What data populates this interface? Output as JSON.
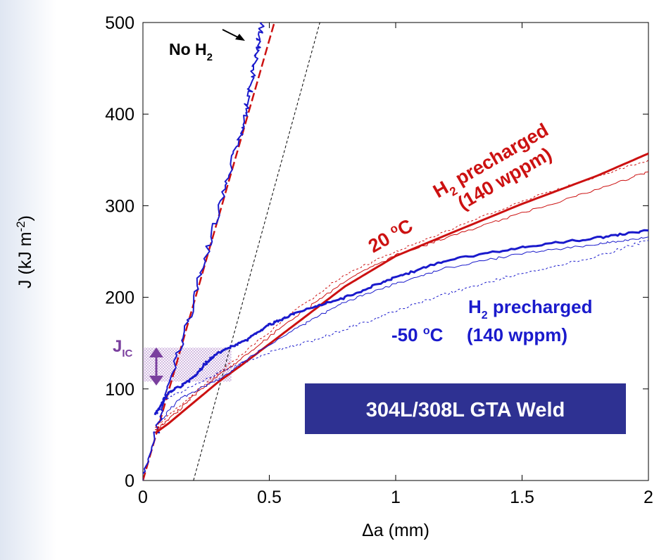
{
  "chart_data": {
    "type": "line",
    "xlabel_symbol": "Δ",
    "xlabel_text": "a (mm)",
    "ylabel_prefix": "J (kJ m",
    "ylabel_exp": "-2",
    "ylabel_suffix": ")",
    "xlim": [
      0,
      2
    ],
    "ylim": [
      0,
      500
    ],
    "x_ticks": [
      0,
      0.5,
      1,
      1.5,
      2
    ],
    "x_tick_labels": [
      "0",
      "0.5",
      "1",
      "1.5",
      "2"
    ],
    "y_ticks": [
      0,
      100,
      200,
      300,
      400,
      500
    ],
    "y_tick_labels": [
      "0",
      "100",
      "200",
      "300",
      "400",
      "500"
    ],
    "jic_band": [
      108,
      145
    ],
    "offset_line": [
      [
        0.2,
        0
      ],
      [
        0.7,
        500
      ]
    ],
    "series": [
      {
        "color": "#cc1111",
        "dashed": true,
        "width": 2.5,
        "x": [
          0,
          0.52
        ],
        "y": [
          0,
          500
        ]
      },
      {
        "color": "#1a1acc",
        "noise": 8,
        "width": 2,
        "x": [
          0,
          0.1,
          0.2,
          0.3,
          0.38,
          0.42,
          0.45,
          0.47
        ],
        "y": [
          0,
          100,
          196,
          292,
          372,
          420,
          465,
          500
        ]
      },
      {
        "color": "#cc1111",
        "width": 3,
        "x": [
          0.05,
          0.1,
          0.2,
          0.3,
          0.4,
          0.6,
          0.8,
          1.0,
          1.2,
          1.5,
          1.8,
          2.0
        ],
        "y": [
          52,
          62,
          85,
          108,
          128,
          170,
          212,
          245,
          268,
          302,
          333,
          357
        ]
      },
      {
        "color": "#cc1111",
        "width": 1,
        "noise": 3,
        "x": [
          0.05,
          0.1,
          0.2,
          0.3,
          0.4,
          0.6,
          0.8,
          1.0,
          1.2,
          1.5,
          1.8,
          2.0
        ],
        "y": [
          55,
          66,
          92,
          115,
          135,
          178,
          218,
          246,
          265,
          292,
          318,
          337
        ]
      },
      {
        "color": "#cc1111",
        "width": 1,
        "dashed": true,
        "noise": 3,
        "x": [
          0.05,
          0.2,
          0.4,
          0.6,
          0.8,
          1.0,
          1.2,
          1.5,
          1.8,
          2.0
        ],
        "y": [
          58,
          95,
          140,
          185,
          225,
          250,
          272,
          305,
          332,
          350
        ]
      },
      {
        "color": "#1a1acc",
        "width": 3,
        "noise": 3,
        "x": [
          0.05,
          0.1,
          0.2,
          0.25,
          0.3,
          0.4,
          0.5,
          0.6,
          0.8,
          1.0,
          1.2,
          1.5,
          1.8,
          2.0
        ],
        "y": [
          72,
          95,
          112,
          128,
          140,
          152,
          170,
          182,
          200,
          222,
          240,
          255,
          265,
          273
        ]
      },
      {
        "color": "#1a1acc",
        "width": 1,
        "noise": 3,
        "x": [
          0.05,
          0.15,
          0.3,
          0.4,
          0.6,
          0.8,
          1.0,
          1.2,
          1.5,
          1.8,
          2.0
        ],
        "y": [
          60,
          90,
          110,
          130,
          165,
          195,
          215,
          232,
          248,
          258,
          266
        ]
      },
      {
        "color": "#1a1acc",
        "width": 1,
        "dashed": true,
        "noise": 4,
        "x": [
          0.1,
          0.3,
          0.5,
          0.7,
          0.9,
          1.1,
          1.3,
          1.5,
          1.8,
          2.0
        ],
        "y": [
          90,
          118,
          140,
          155,
          175,
          195,
          212,
          226,
          245,
          262
        ]
      }
    ],
    "annotations": {
      "no_h2_main": "No H",
      "no_h2_sub": "2",
      "red_temp_a": "20 ",
      "red_temp_b": "o",
      "red_temp_c": "C",
      "red_h": "H",
      "red_sub": "2",
      "red_label": " precharged",
      "red_wppm": "(140 wppm)",
      "blue_h": "H",
      "blue_sub": "2",
      "blue_label": " precharged",
      "blue_temp_a": "-50 ",
      "blue_temp_b": "o",
      "blue_temp_c": "C",
      "blue_wppm": "(140 wppm)",
      "jic_main": "J",
      "jic_sub": "IC",
      "weld_box": "304L/308L GTA Weld"
    },
    "colors": {
      "red": "#cc1111",
      "blue": "#1a1acc",
      "purple": "#7a3f9e",
      "box_bg": "#2e3192",
      "box_text": "#ffffff"
    }
  }
}
